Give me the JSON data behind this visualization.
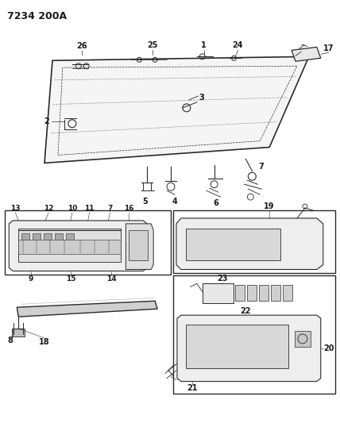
{
  "title_code": "7234 200A",
  "bg_color": "#ffffff",
  "line_color": "#2a2a2a",
  "label_color": "#1a1a1a",
  "title_fontsize": 9,
  "label_fontsize": 7
}
